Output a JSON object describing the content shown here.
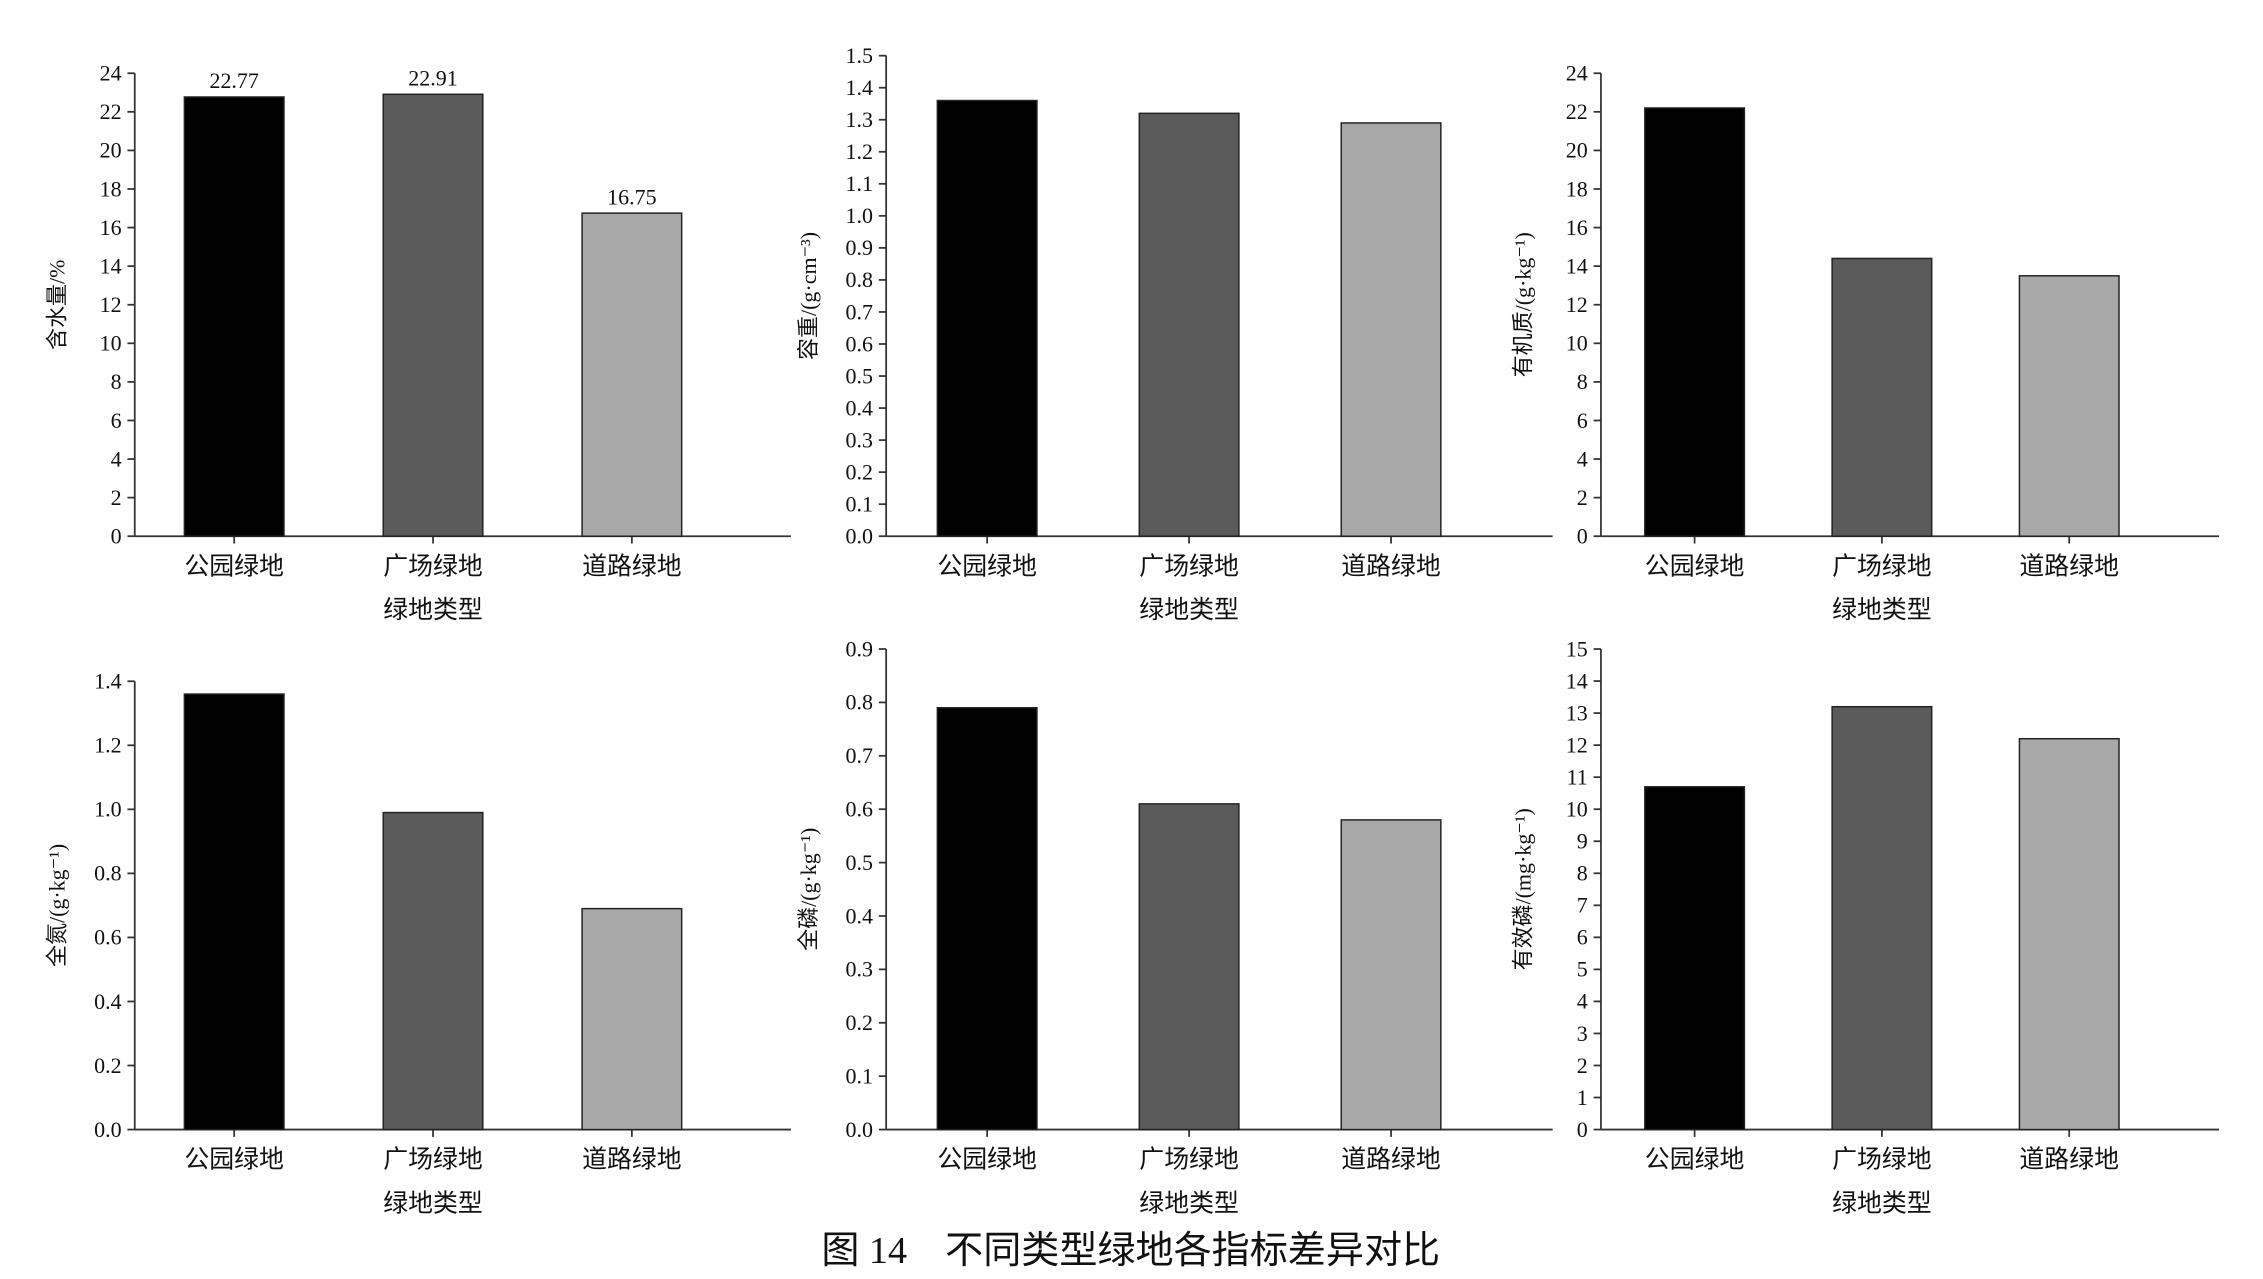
{
  "chart_data": [
    {
      "type": "bar",
      "categories": [
        "公园绿地",
        "广场绿地",
        "道路绿地"
      ],
      "values": [
        22.77,
        22.91,
        16.75
      ],
      "value_labels": [
        "22.77",
        "22.91",
        "16.75"
      ],
      "colors": [
        "#000000",
        "#5a5a5a",
        "#a8a8a8"
      ],
      "ylabel": "含水量/%",
      "xlabel": "绿地类型",
      "ylim": [
        0,
        24
      ],
      "yticks": [
        0,
        2,
        4,
        6,
        8,
        10,
        12,
        14,
        16,
        18,
        20,
        22,
        24
      ]
    },
    {
      "type": "bar",
      "categories": [
        "公园绿地",
        "广场绿地",
        "道路绿地"
      ],
      "values": [
        1.36,
        1.32,
        1.29
      ],
      "colors": [
        "#000000",
        "#5a5a5a",
        "#a8a8a8"
      ],
      "ylabel": "容重/(g·cm⁻³)",
      "xlabel": "绿地类型",
      "ylim": [
        0,
        1.5
      ],
      "yticks": [
        {
          "value": 0,
          "label": "0.0"
        },
        0.1,
        0.2,
        0.3,
        0.4,
        0.5,
        0.6,
        0.7,
        0.8,
        0.9,
        {
          "value": 1,
          "label": "1.0"
        },
        1.1,
        1.2,
        1.3,
        1.4,
        1.5
      ]
    },
    {
      "type": "bar",
      "categories": [
        "公园绿地",
        "广场绿地",
        "道路绿地"
      ],
      "values": [
        22.2,
        14.4,
        13.5
      ],
      "colors": [
        "#000000",
        "#5a5a5a",
        "#a8a8a8"
      ],
      "ylabel": "有机质/(g·kg⁻¹)",
      "xlabel": "绿地类型",
      "ylim": [
        0,
        24
      ],
      "yticks": [
        0,
        2,
        4,
        6,
        8,
        10,
        12,
        14,
        16,
        18,
        20,
        22,
        24
      ]
    },
    {
      "type": "bar",
      "categories": [
        "公园绿地",
        "广场绿地",
        "道路绿地"
      ],
      "values": [
        1.36,
        0.99,
        0.69
      ],
      "colors": [
        "#000000",
        "#5a5a5a",
        "#a8a8a8"
      ],
      "ylabel": "全氮/(g·kg⁻¹)",
      "xlabel": "绿地类型",
      "ylim": [
        0,
        1.4
      ],
      "yticks": [
        {
          "value": 0,
          "label": "0.0"
        },
        0.2,
        0.4,
        0.6,
        0.8,
        {
          "value": 1,
          "label": "1.0"
        },
        1.2,
        1.4
      ]
    },
    {
      "type": "bar",
      "categories": [
        "公园绿地",
        "广场绿地",
        "道路绿地"
      ],
      "values": [
        0.79,
        0.61,
        0.58
      ],
      "colors": [
        "#000000",
        "#5a5a5a",
        "#a8a8a8"
      ],
      "ylabel": "全磷/(g·kg⁻¹)",
      "xlabel": "绿地类型",
      "ylim": [
        0,
        0.9
      ],
      "yticks": [
        {
          "value": 0,
          "label": "0.0"
        },
        0.1,
        0.2,
        0.3,
        0.4,
        0.5,
        0.6,
        0.7,
        0.8,
        0.9
      ]
    },
    {
      "type": "bar",
      "categories": [
        "公园绿地",
        "广场绿地",
        "道路绿地"
      ],
      "values": [
        10.7,
        13.2,
        12.2
      ],
      "colors": [
        "#000000",
        "#5a5a5a",
        "#a8a8a8"
      ],
      "ylabel": "有效磷/(mg·kg⁻¹)",
      "xlabel": "绿地类型",
      "ylim": [
        0,
        15
      ],
      "yticks": [
        0,
        1,
        2,
        3,
        4,
        5,
        6,
        7,
        8,
        9,
        10,
        11,
        12,
        13,
        14,
        15
      ]
    }
  ],
  "figure_caption": "图 14　不同类型绿地各指标差异对比"
}
